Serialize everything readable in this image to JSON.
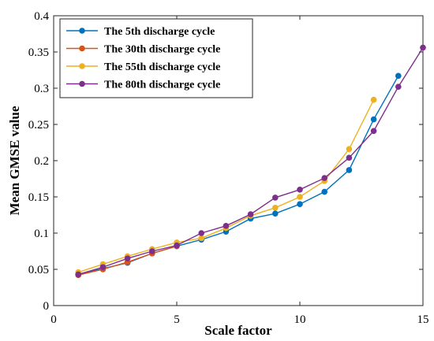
{
  "chart_data": {
    "type": "line",
    "xlabel": "Scale factor",
    "ylabel": "Mean GMSE value",
    "xlim": [
      0,
      15
    ],
    "ylim": [
      0,
      0.4
    ],
    "xticks": [
      0,
      5,
      10,
      15
    ],
    "yticks": [
      0,
      0.05,
      0.1,
      0.15,
      0.2,
      0.25,
      0.3,
      0.35,
      0.4
    ],
    "xtick_labels": [
      "0",
      "5",
      "10",
      "15"
    ],
    "ytick_labels": [
      "0",
      "0.05",
      "0.1",
      "0.15",
      "0.2",
      "0.25",
      "0.3",
      "0.35",
      "0.4"
    ],
    "grid": false,
    "legend_position": "top-left",
    "series": [
      {
        "name": "The 5th discharge cycle",
        "color": "#0072BD",
        "x": [
          1,
          2,
          3,
          4,
          5,
          6,
          7,
          8,
          9,
          10,
          11,
          12,
          13,
          14
        ],
        "values": [
          0.043,
          0.051,
          0.059,
          0.072,
          0.082,
          0.091,
          0.102,
          0.12,
          0.127,
          0.14,
          0.157,
          0.187,
          0.257,
          0.317
        ]
      },
      {
        "name": "The 30th discharge cycle",
        "color": "#D95319",
        "x": [
          1,
          2,
          3,
          4,
          5
        ],
        "values": [
          0.042,
          0.05,
          0.06,
          0.072,
          0.082
        ]
      },
      {
        "name": "The 55th discharge cycle",
        "color": "#EDB120",
        "x": [
          1,
          2,
          3,
          4,
          5,
          6,
          7,
          8,
          9,
          10,
          11,
          12,
          13
        ],
        "values": [
          0.046,
          0.057,
          0.068,
          0.078,
          0.087,
          0.093,
          0.107,
          0.124,
          0.135,
          0.15,
          0.172,
          0.216,
          0.284
        ]
      },
      {
        "name": "The 80th discharge cycle",
        "color": "#7E2F8E",
        "x": [
          1,
          2,
          3,
          4,
          5,
          6,
          7,
          8,
          9,
          10,
          11,
          12,
          13,
          14,
          15
        ],
        "values": [
          0.043,
          0.053,
          0.065,
          0.075,
          0.083,
          0.1,
          0.11,
          0.126,
          0.149,
          0.16,
          0.176,
          0.204,
          0.241,
          0.302,
          0.356
        ]
      }
    ]
  }
}
